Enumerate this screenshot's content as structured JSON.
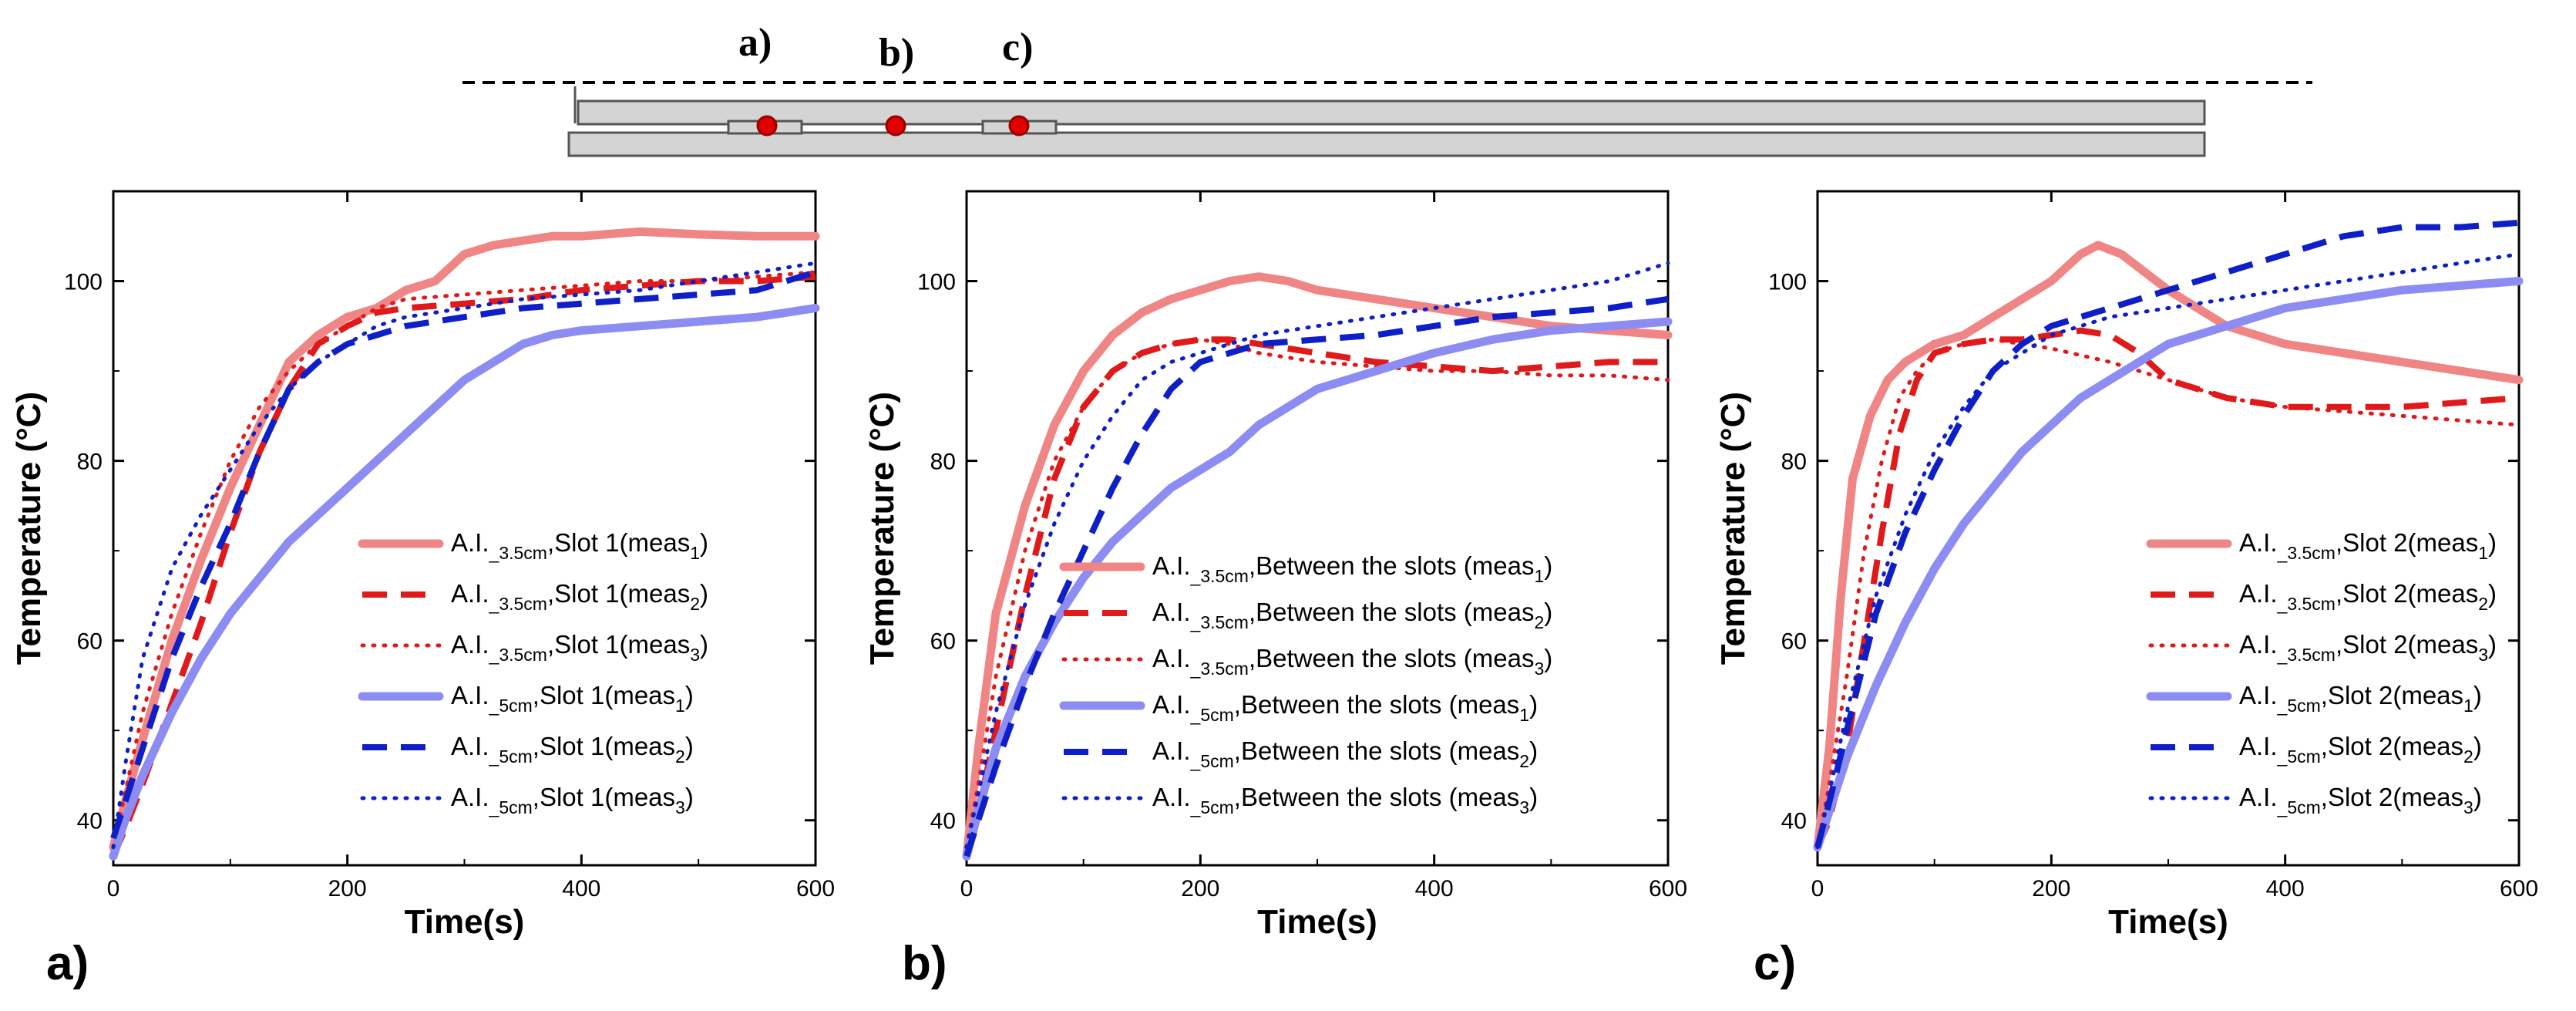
{
  "schematic": {
    "labels": [
      "a)",
      "b)",
      "c)"
    ],
    "colors": {
      "plate": "#d4d4d4",
      "outline": "#555555",
      "sensor": "#e00000"
    }
  },
  "colors": {
    "pink": "#f08585",
    "red": "#e01a1a",
    "lavender": "#8c8cf2",
    "blue": "#0f1fc8"
  },
  "chart_data": [
    {
      "type": "line",
      "panel_label": "a)",
      "xlabel": "Time(s)",
      "ylabel": "Temperature (°C)",
      "xlim": [
        0,
        600
      ],
      "ylim": [
        35,
        110
      ],
      "xticks": [
        0,
        200,
        400,
        600
      ],
      "yticks": [
        40,
        60,
        80,
        100
      ],
      "series": [
        {
          "prefix": "A.I.",
          "sub": "_3.5cm",
          "mid": ",Slot 1(meas",
          "meas": "1",
          "end": ")",
          "color": "#f08585",
          "style": "solid",
          "x": [
            0,
            10,
            25,
            50,
            75,
            100,
            125,
            150,
            175,
            200,
            225,
            250,
            275,
            300,
            325,
            350,
            375,
            400,
            450,
            500,
            550,
            600
          ],
          "y": [
            37,
            42,
            49,
            60,
            69,
            77,
            84,
            91,
            94,
            96,
            97,
            99,
            100,
            103,
            104,
            104.5,
            105,
            105,
            105.5,
            105.2,
            105,
            105
          ]
        },
        {
          "prefix": "A.I.",
          "sub": "_3.5cm",
          "mid": ",Slot 1(meas",
          "meas": "2",
          "end": ")",
          "color": "#e01a1a",
          "style": "dash",
          "x": [
            0,
            10,
            25,
            50,
            75,
            100,
            125,
            150,
            175,
            200,
            225,
            250,
            300,
            350,
            400,
            450,
            500,
            550,
            600
          ],
          "y": [
            36,
            39,
            44,
            53,
            62,
            72,
            81,
            88,
            93,
            95,
            96.5,
            97,
            97.5,
            98,
            99,
            99.5,
            100,
            100,
            100.5
          ]
        },
        {
          "prefix": "A.I.",
          "sub": "_3.5cm",
          "mid": ",Slot 1(meas",
          "meas": "3",
          "end": ")",
          "color": "#e01a1a",
          "style": "dot",
          "x": [
            0,
            10,
            25,
            50,
            75,
            100,
            125,
            150,
            175,
            200,
            225,
            250,
            300,
            350,
            400,
            450,
            500,
            550,
            600
          ],
          "y": [
            37,
            43,
            52,
            63,
            72,
            80,
            86,
            90,
            93,
            95,
            97,
            98,
            98.5,
            99,
            99.5,
            100,
            100,
            100.5,
            101
          ]
        },
        {
          "prefix": "A.I.",
          "sub": "_5cm",
          "mid": ",Slot 1(meas",
          "meas": "1",
          "end": ")",
          "color": "#8c8cf2",
          "style": "solid",
          "x": [
            0,
            10,
            25,
            50,
            75,
            100,
            125,
            150,
            175,
            200,
            225,
            250,
            275,
            300,
            325,
            350,
            375,
            400,
            450,
            500,
            550,
            600
          ],
          "y": [
            36,
            40,
            45,
            52,
            58,
            63,
            67,
            71,
            74,
            77,
            80,
            83,
            86,
            89,
            91,
            93,
            94,
            94.5,
            95,
            95.5,
            96,
            97
          ]
        },
        {
          "prefix": "A.I.",
          "sub": "_5cm",
          "mid": ",Slot 1(meas",
          "meas": "2",
          "end": ")",
          "color": "#0f1fc8",
          "style": "dash",
          "x": [
            0,
            10,
            25,
            50,
            75,
            100,
            125,
            150,
            175,
            200,
            225,
            250,
            300,
            350,
            400,
            450,
            500,
            550,
            600
          ],
          "y": [
            38,
            42,
            48,
            58,
            66,
            73,
            81,
            88,
            91,
            93,
            94,
            95,
            96,
            97,
            97.5,
            98,
            98.5,
            99,
            101
          ]
        },
        {
          "prefix": "A.I.",
          "sub": "_5cm",
          "mid": ",Slot 1(meas",
          "meas": "3",
          "end": ")",
          "color": "#0f1fc8",
          "style": "dot",
          "x": [
            0,
            10,
            25,
            50,
            75,
            100,
            125,
            150,
            175,
            200,
            225,
            250,
            300,
            350,
            400,
            450,
            500,
            550,
            600
          ],
          "y": [
            37,
            46,
            58,
            68,
            74,
            79,
            84,
            88,
            91,
            93,
            95,
            96,
            97,
            98,
            98.5,
            99,
            100,
            101,
            102
          ]
        }
      ]
    },
    {
      "type": "line",
      "panel_label": "b)",
      "xlabel": "Time(s)",
      "ylabel": "Temperature (°C)",
      "xlim": [
        0,
        600
      ],
      "ylim": [
        35,
        110
      ],
      "xticks": [
        0,
        200,
        400,
        600
      ],
      "yticks": [
        40,
        60,
        80,
        100
      ],
      "series": [
        {
          "prefix": "A.I.",
          "sub": "_3.5cm",
          "mid": ",Between the slots (meas",
          "meas": "1",
          "end": ")",
          "color": "#f08585",
          "style": "solid",
          "x": [
            0,
            10,
            25,
            50,
            75,
            100,
            125,
            150,
            175,
            200,
            225,
            250,
            275,
            300,
            350,
            400,
            450,
            500,
            550,
            600
          ],
          "y": [
            36,
            48,
            63,
            75,
            84,
            90,
            94,
            96.5,
            98,
            99,
            100,
            100.5,
            100,
            99,
            98,
            97,
            96,
            95,
            94.5,
            94
          ]
        },
        {
          "prefix": "A.I.",
          "sub": "_3.5cm",
          "mid": ",Between the slots (meas",
          "meas": "2",
          "end": ")",
          "color": "#e01a1a",
          "style": "dash",
          "x": [
            0,
            10,
            25,
            50,
            75,
            100,
            125,
            150,
            175,
            200,
            225,
            250,
            300,
            350,
            400,
            450,
            500,
            550,
            600
          ],
          "y": [
            36,
            41,
            50,
            65,
            78,
            86,
            90,
            92,
            93,
            93.5,
            93.5,
            93,
            92,
            91,
            90.5,
            90,
            90.5,
            91,
            91
          ]
        },
        {
          "prefix": "A.I.",
          "sub": "_3.5cm",
          "mid": ",Between the slots (meas",
          "meas": "3",
          "end": ")",
          "color": "#e01a1a",
          "style": "dot",
          "x": [
            0,
            10,
            25,
            50,
            75,
            100,
            125,
            150,
            175,
            200,
            225,
            250,
            300,
            350,
            400,
            450,
            500,
            550,
            600
          ],
          "y": [
            37,
            44,
            56,
            70,
            80,
            86,
            90,
            92,
            93,
            93.5,
            93,
            92,
            91,
            90.5,
            90,
            90,
            89.5,
            89.5,
            89
          ]
        },
        {
          "prefix": "A.I.",
          "sub": "_5cm",
          "mid": ",Between the slots (meas",
          "meas": "1",
          "end": ")",
          "color": "#8c8cf2",
          "style": "solid",
          "x": [
            0,
            10,
            25,
            50,
            75,
            100,
            125,
            150,
            175,
            200,
            225,
            250,
            275,
            300,
            350,
            400,
            450,
            500,
            550,
            600
          ],
          "y": [
            36,
            41,
            48,
            56,
            62,
            67,
            71,
            74,
            77,
            79,
            81,
            84,
            86,
            88,
            90,
            92,
            93.5,
            94.5,
            95,
            95.5
          ]
        },
        {
          "prefix": "A.I.",
          "sub": "_5cm",
          "mid": ",Between the slots (meas",
          "meas": "2",
          "end": ")",
          "color": "#0f1fc8",
          "style": "dash",
          "x": [
            0,
            10,
            25,
            50,
            75,
            100,
            125,
            150,
            175,
            200,
            225,
            250,
            300,
            350,
            400,
            450,
            500,
            550,
            600
          ],
          "y": [
            36,
            40,
            46,
            55,
            63,
            70,
            77,
            83,
            88,
            91,
            92,
            93,
            93.5,
            94,
            95,
            96,
            96.5,
            97,
            98
          ]
        },
        {
          "prefix": "A.I.",
          "sub": "_5cm",
          "mid": ",Between the slots (meas",
          "meas": "3",
          "end": ")",
          "color": "#0f1fc8",
          "style": "dot",
          "x": [
            0,
            10,
            25,
            50,
            75,
            100,
            125,
            150,
            175,
            200,
            225,
            250,
            300,
            350,
            400,
            450,
            500,
            550,
            600
          ],
          "y": [
            37,
            43,
            52,
            64,
            73,
            80,
            85,
            89,
            91,
            92,
            93,
            94,
            95,
            96,
            97,
            98,
            99,
            100,
            102
          ]
        }
      ]
    },
    {
      "type": "line",
      "panel_label": "c)",
      "xlabel": "Time(s)",
      "ylabel": "Temperature (°C)",
      "xlim": [
        0,
        600
      ],
      "ylim": [
        35,
        110
      ],
      "xticks": [
        0,
        200,
        400,
        600
      ],
      "yticks": [
        40,
        60,
        80,
        100
      ],
      "series": [
        {
          "prefix": "A.I.",
          "sub": "_3.5cm",
          "mid": ",Slot 2(meas",
          "meas": "1",
          "end": ")",
          "color": "#f08585",
          "style": "solid",
          "x": [
            0,
            10,
            20,
            30,
            45,
            60,
            75,
            100,
            125,
            150,
            175,
            200,
            225,
            240,
            260,
            300,
            350,
            400,
            450,
            500,
            550,
            600
          ],
          "y": [
            37,
            48,
            65,
            78,
            85,
            89,
            91,
            93,
            94,
            96,
            98,
            100,
            103,
            104,
            103,
            99,
            95,
            93,
            92,
            91,
            90,
            89
          ]
        },
        {
          "prefix": "A.I.",
          "sub": "_3.5cm",
          "mid": ",Slot 2(meas",
          "meas": "2",
          "end": ")",
          "color": "#e01a1a",
          "style": "dash",
          "x": [
            0,
            10,
            25,
            40,
            55,
            70,
            85,
            100,
            125,
            150,
            175,
            200,
            225,
            250,
            275,
            300,
            350,
            400,
            450,
            500,
            550,
            600
          ],
          "y": [
            37,
            40,
            48,
            60,
            72,
            83,
            89,
            92,
            93,
            93.5,
            93.5,
            94,
            94.5,
            94,
            92,
            89,
            87,
            86,
            86,
            86,
            86.5,
            87
          ]
        },
        {
          "prefix": "A.I.",
          "sub": "_3.5cm",
          "mid": ",Slot 2(meas",
          "meas": "3",
          "end": ")",
          "color": "#e01a1a",
          "style": "dot",
          "x": [
            0,
            10,
            25,
            40,
            55,
            70,
            85,
            100,
            125,
            150,
            175,
            200,
            250,
            300,
            350,
            400,
            450,
            500,
            550,
            600
          ],
          "y": [
            37,
            44,
            56,
            70,
            80,
            87,
            90,
            92,
            93,
            93.5,
            93,
            92.5,
            91,
            89,
            87,
            86,
            85.5,
            85,
            84.5,
            84
          ]
        },
        {
          "prefix": "A.I.",
          "sub": "_5cm",
          "mid": ",Slot 2(meas",
          "meas": "1",
          "end": ")",
          "color": "#8c8cf2",
          "style": "solid",
          "x": [
            0,
            10,
            25,
            50,
            75,
            100,
            125,
            150,
            175,
            200,
            225,
            250,
            275,
            300,
            350,
            400,
            450,
            500,
            550,
            600
          ],
          "y": [
            37,
            41,
            47,
            55,
            62,
            68,
            73,
            77,
            81,
            84,
            87,
            89,
            91,
            93,
            95,
            97,
            98,
            99,
            99.5,
            100
          ]
        },
        {
          "prefix": "A.I.",
          "sub": "_5cm",
          "mid": ",Slot 2(meas",
          "meas": "2",
          "end": ")",
          "color": "#0f1fc8",
          "style": "dash",
          "x": [
            0,
            10,
            25,
            50,
            75,
            100,
            125,
            150,
            175,
            200,
            225,
            250,
            300,
            350,
            400,
            450,
            500,
            550,
            600
          ],
          "y": [
            37,
            42,
            50,
            63,
            72,
            79,
            85,
            90,
            93,
            95,
            96,
            97,
            99,
            101,
            103,
            105,
            106,
            106,
            106.5
          ]
        },
        {
          "prefix": "A.I.",
          "sub": "_5cm",
          "mid": ",Slot 2(meas",
          "meas": "3",
          "end": ")",
          "color": "#0f1fc8",
          "style": "dot",
          "x": [
            0,
            10,
            25,
            50,
            75,
            100,
            125,
            150,
            175,
            200,
            225,
            250,
            300,
            350,
            400,
            450,
            500,
            550,
            600
          ],
          "y": [
            37,
            43,
            52,
            65,
            74,
            81,
            86,
            90,
            92,
            94,
            95,
            96,
            97,
            98,
            99,
            100,
            101,
            102,
            103
          ]
        }
      ]
    }
  ]
}
